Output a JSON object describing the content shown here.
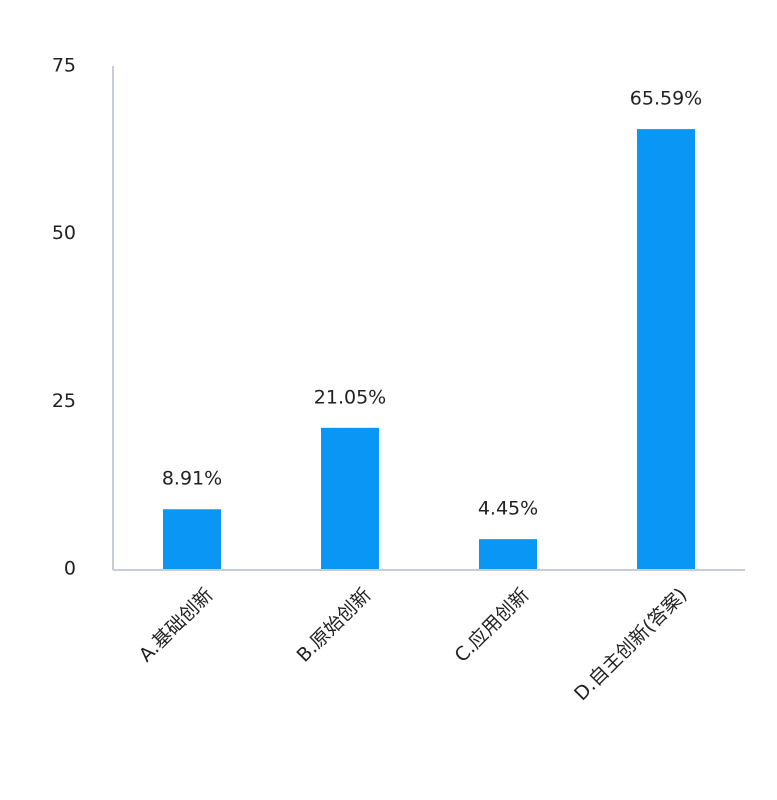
{
  "chart_data": {
    "type": "bar",
    "categories": [
      "A.基础创新",
      "B.原始创新",
      "C.应用创新",
      "D.自主创新(答案)"
    ],
    "values": [
      8.91,
      21.05,
      4.45,
      65.59
    ],
    "value_labels": [
      "8.91%",
      "21.05%",
      "4.45%",
      "65.59%"
    ],
    "color": "#0a96f5",
    "ylim": [
      0,
      75
    ],
    "yticks": [
      0,
      25,
      50,
      75
    ],
    "grid": false
  }
}
